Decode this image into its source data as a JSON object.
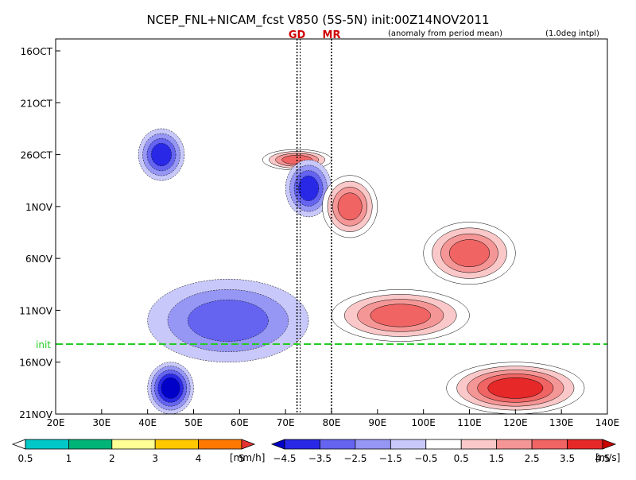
{
  "chart_data": {
    "type": "heatmap",
    "title": "NCEP_FNL+NICAM_fcst V850 (5S-5N) init:00Z14NOV2011",
    "subtitle_left": "(anomaly from period mean)",
    "subtitle_right": "(1.0deg intpl)",
    "xlabel": "",
    "ylabel": "",
    "x_ticks": [
      "20E",
      "30E",
      "40E",
      "50E",
      "60E",
      "70E",
      "80E",
      "90E",
      "100E",
      "110E",
      "120E",
      "130E",
      "140E"
    ],
    "x_range": [
      20,
      140
    ],
    "y_ticks": [
      "16OCT",
      "21OCT",
      "26OCT",
      "1NOV",
      "6NOV",
      "11NOV",
      "16NOV",
      "21NOV"
    ],
    "init_label": "init",
    "reference_lines": [
      {
        "label": "GD",
        "lon": 72.5
      },
      {
        "label": "MR",
        "lon": 80
      }
    ],
    "precip_legend": {
      "labels": [
        "0.5",
        "1",
        "2",
        "3",
        "4",
        "5"
      ],
      "unit": "[mm/h]",
      "colors": [
        "#ffffff",
        "#00c8c8",
        "#00b478",
        "#ffff96",
        "#ffc800",
        "#ff7800",
        "#e63232"
      ]
    },
    "wind_legend": {
      "labels": [
        "−4.5",
        "−3.5",
        "−2.5",
        "−1.5",
        "−0.5",
        "0.5",
        "1.5",
        "2.5",
        "3.5",
        "4.5"
      ],
      "unit": "[m/s]",
      "colors": [
        "#0000c8",
        "#2828e6",
        "#6464f0",
        "#9696f5",
        "#c8c8fa",
        "#ffffff",
        "#fac8c8",
        "#f59696",
        "#f06464",
        "#e62828",
        "#c80000"
      ]
    },
    "anomaly_features": [
      {
        "sign": "negative",
        "period": "21OCT-26OCT",
        "lon_range": [
          38,
          48
        ],
        "level": -3.5
      },
      {
        "sign": "positive",
        "period": "around 26OCT",
        "lon_range": [
          65,
          80
        ],
        "level": 3.5
      },
      {
        "sign": "negative",
        "period": "26OCT-1NOV",
        "lon_range": [
          70,
          80
        ],
        "level": -3.5
      },
      {
        "sign": "positive",
        "period": "26OCT-6NOV",
        "lon_range": [
          78,
          90
        ],
        "level": 3.5
      },
      {
        "sign": "positive",
        "period": "1NOV-6NOV",
        "lon_range": [
          100,
          120
        ],
        "level": 3.5
      },
      {
        "sign": "positive",
        "period": "6NOV-11NOV",
        "lon_range": [
          80,
          110
        ],
        "level": 3.5
      },
      {
        "sign": "negative",
        "period": "6NOV-14NOV",
        "lon_range": [
          40,
          75
        ],
        "level": -2.5
      },
      {
        "sign": "negative",
        "period": "14NOV-21NOV",
        "lon_range": [
          40,
          50
        ],
        "level": -4.5
      },
      {
        "sign": "positive",
        "period": "14NOV-21NOV",
        "lon_range": [
          105,
          135
        ],
        "level": 4.5
      }
    ]
  }
}
